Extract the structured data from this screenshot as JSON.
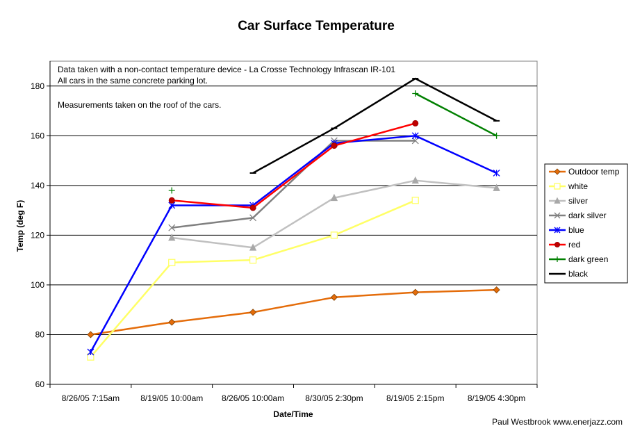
{
  "chart_data": {
    "type": "line",
    "title": "Car Surface Temperature",
    "xlabel": "Date/Time",
    "ylabel": "Temp (deg F)",
    "categories": [
      "8/26/05 7:15am",
      "8/19/05 10:00am",
      "8/26/05 10:00am",
      "8/30/05 2:30pm",
      "8/19/05 2:15pm",
      "8/19/05 4:30pm"
    ],
    "ylim": [
      60,
      190
    ],
    "yticks": [
      60,
      80,
      100,
      120,
      140,
      160,
      180
    ],
    "grid": "horizontal",
    "legend_position": "right",
    "notes": [
      "Data taken with a non-contact temperature device - La Crosse Technology Infrascan IR-101",
      "All cars in the same concrete parking lot.",
      "Measurements taken on the roof of the cars."
    ],
    "series": [
      {
        "name": "Outdoor temp",
        "color": "#e46c0a",
        "marker": "diamond",
        "values": [
          80,
          85,
          89,
          95,
          97,
          98
        ]
      },
      {
        "name": "white",
        "color": "#ffff66",
        "marker": "square",
        "values": [
          71,
          109,
          110,
          120,
          134,
          null
        ]
      },
      {
        "name": "silver",
        "color": "#c0c0c0",
        "marker": "triangle",
        "values": [
          null,
          119,
          115,
          135,
          142,
          139
        ]
      },
      {
        "name": "dark silver",
        "color": "#808080",
        "marker": "x",
        "values": [
          null,
          123,
          127,
          158,
          158,
          null
        ]
      },
      {
        "name": "blue",
        "color": "#0000ff",
        "marker": "star",
        "values": [
          73,
          132,
          132,
          157,
          160,
          145
        ]
      },
      {
        "name": "red",
        "color": "#ff0000",
        "marker": "circle",
        "values": [
          null,
          134,
          131,
          156,
          165,
          null
        ]
      },
      {
        "name": "dark green",
        "color": "#008000",
        "marker": "plus",
        "values": [
          null,
          138,
          null,
          null,
          177,
          160
        ]
      },
      {
        "name": "black",
        "color": "#000000",
        "marker": "dash",
        "values": [
          null,
          null,
          145,
          163,
          183,
          166
        ]
      }
    ]
  },
  "credit": "Paul Westbrook  www.enerjazz.com"
}
